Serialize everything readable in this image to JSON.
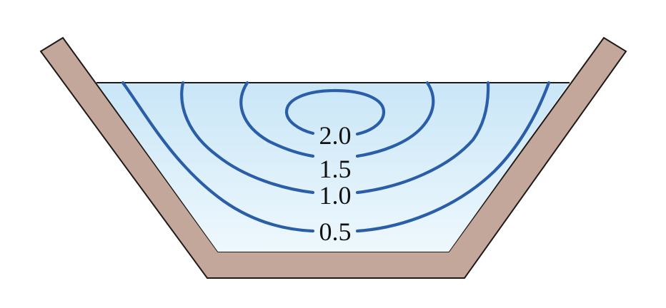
{
  "diagram": {
    "colors": {
      "channel_wall": "#c4a79b",
      "channel_outline": "#1f1a17",
      "water_top": "#c9e6f7",
      "water_bottom": "#eef8fd",
      "contour_line": "#2a5ea8",
      "label_text": "#111111"
    },
    "contours": [
      {
        "label": "2.0"
      },
      {
        "label": "1.5"
      },
      {
        "label": "1.0"
      },
      {
        "label": "0.5"
      }
    ]
  }
}
